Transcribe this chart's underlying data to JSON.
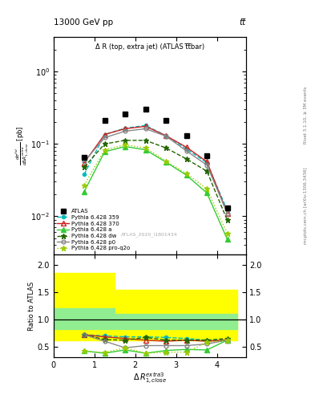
{
  "title_top": "13000 GeV pp",
  "title_top_right": "tt̅",
  "main_title": "Δ R (top, extra jet) (ATLAS t̅t̅bar)",
  "watermark": "ATLAS_2020_I1801434",
  "right_label_top": "Rivet 3.1.10, ≥ 3M events",
  "right_label_bottom": "mcplots.cern.ch [arXiv:1306.3436]",
  "ylabel_ratio": "Ratio to ATLAS",
  "x_values": [
    0.75,
    1.25,
    1.75,
    2.25,
    2.75,
    3.25,
    3.75,
    4.25
  ],
  "data_ATLAS": [
    0.065,
    0.21,
    0.26,
    0.3,
    0.21,
    0.13,
    0.068,
    0.013
  ],
  "data_359": [
    0.038,
    0.135,
    0.165,
    0.18,
    0.13,
    0.085,
    0.055,
    0.012
  ],
  "data_370": [
    0.055,
    0.135,
    0.162,
    0.175,
    0.13,
    0.09,
    0.057,
    0.011
  ],
  "data_a": [
    0.022,
    0.078,
    0.092,
    0.083,
    0.056,
    0.037,
    0.021,
    0.0048
  ],
  "data_dw": [
    0.048,
    0.1,
    0.112,
    0.112,
    0.088,
    0.062,
    0.042,
    0.0088
  ],
  "data_p0": [
    0.057,
    0.122,
    0.15,
    0.162,
    0.128,
    0.08,
    0.051,
    0.011
  ],
  "data_proq2o": [
    0.027,
    0.083,
    0.097,
    0.088,
    0.058,
    0.039,
    0.024,
    0.0058
  ],
  "ratio_359": [
    0.72,
    0.7,
    0.68,
    0.68,
    0.67,
    0.65,
    0.62,
    0.62
  ],
  "ratio_370": [
    0.72,
    0.68,
    0.65,
    0.62,
    0.6,
    0.62,
    0.6,
    0.62
  ],
  "ratio_a": [
    0.42,
    0.38,
    0.44,
    0.38,
    0.43,
    0.45,
    0.44,
    0.62
  ],
  "ratio_dw": [
    0.72,
    0.63,
    0.62,
    0.67,
    0.62,
    0.62,
    0.62,
    0.65
  ],
  "ratio_p0": [
    0.72,
    0.6,
    0.48,
    0.52,
    0.52,
    0.52,
    0.55,
    0.62
  ],
  "ratio_proq2o": [
    0.42,
    0.39,
    0.48,
    0.38,
    0.4,
    0.4,
    0.58,
    0.62
  ],
  "band_x": [
    0.0,
    0.5,
    1.5,
    2.5,
    3.5,
    4.5
  ],
  "band_yellow_top": [
    1.85,
    1.85,
    1.55,
    1.55,
    1.55,
    1.55
  ],
  "band_yellow_bot": [
    0.62,
    0.62,
    0.62,
    0.62,
    0.62,
    0.62
  ],
  "band_green_top": [
    1.2,
    1.2,
    1.1,
    1.1,
    1.1,
    1.1
  ],
  "band_green_bot": [
    0.82,
    0.82,
    0.82,
    0.82,
    0.82,
    0.82
  ],
  "ylim_main": [
    0.003,
    3.0
  ],
  "ylim_ratio": [
    0.3,
    2.2
  ],
  "yticks_ratio": [
    0.5,
    1.0,
    1.5,
    2.0
  ],
  "xlim": [
    0,
    4.7
  ],
  "xticks": [
    0,
    1,
    2,
    3,
    4
  ],
  "color_359": "#00BBBB",
  "color_370": "#CC2222",
  "color_a": "#33CC33",
  "color_dw": "#226600",
  "color_p0": "#888888",
  "color_proq2o": "#99CC00",
  "color_ATLAS": "#000000"
}
